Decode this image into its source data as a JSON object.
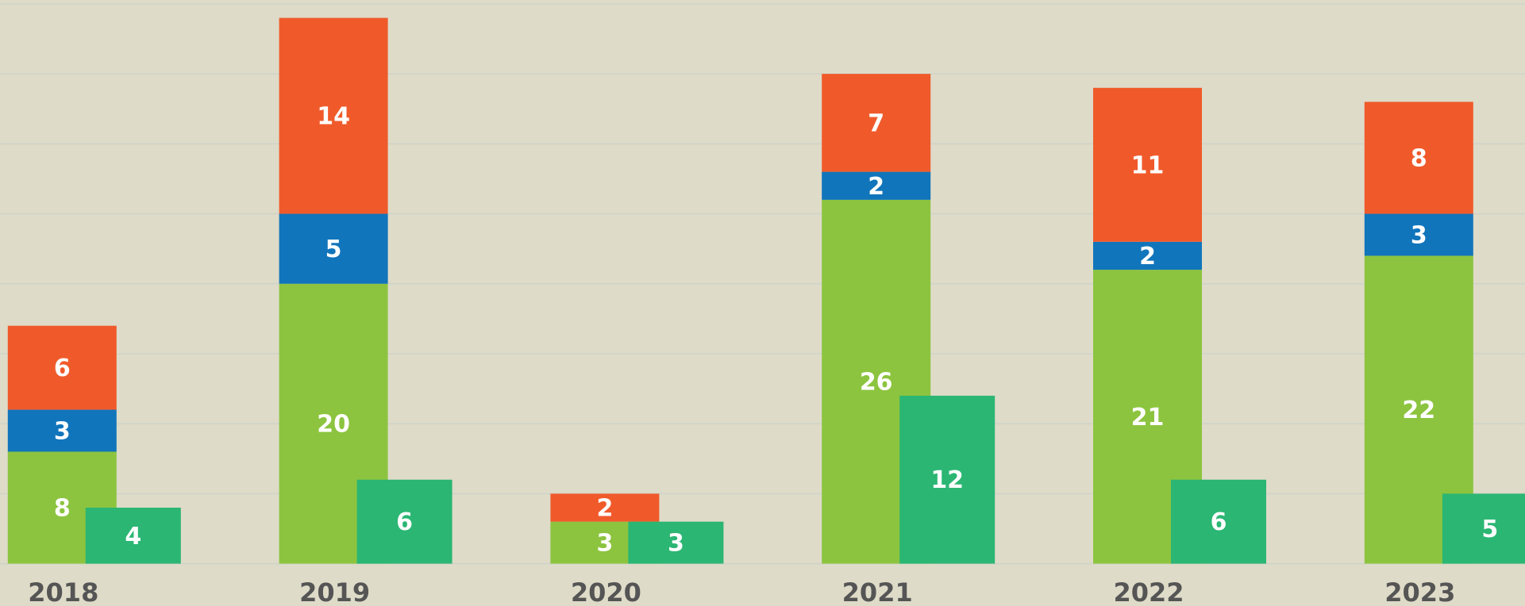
{
  "chart_data": {
    "type": "bar",
    "categories": [
      "2018",
      "2019",
      "2020",
      "2021",
      "2022",
      "2023"
    ],
    "series": [
      {
        "color": "#8cc43f",
        "stacked": true,
        "values": [
          8,
          20,
          3,
          26,
          21,
          22
        ]
      },
      {
        "color": "#1175bb",
        "stacked": true,
        "values": [
          3,
          5,
          null,
          2,
          2,
          3
        ]
      },
      {
        "color": "#f05a2b",
        "stacked": true,
        "values": [
          6,
          14,
          2,
          7,
          11,
          8
        ]
      },
      {
        "color": "#2bb673",
        "stacked": false,
        "values": [
          4,
          6,
          3,
          12,
          6,
          5
        ]
      }
    ],
    "ylim": [
      0,
      40
    ],
    "yticks": [
      0,
      5,
      10,
      15,
      20,
      25,
      30,
      35,
      40
    ],
    "grid": true
  }
}
